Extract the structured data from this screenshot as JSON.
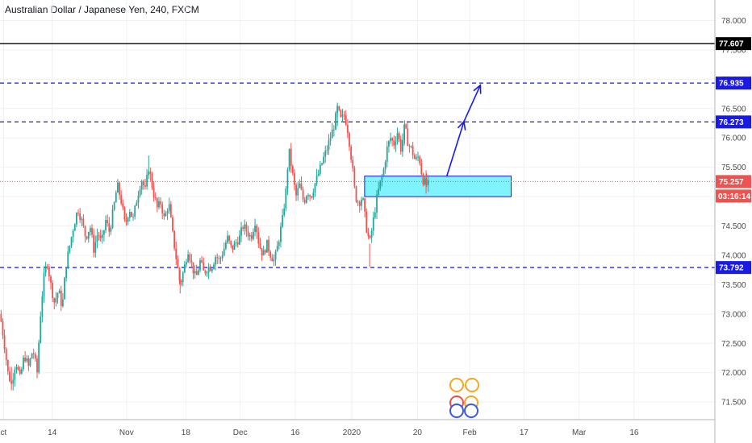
{
  "header": {
    "title": "Australian Dollar / Japanese Yen, 240, FXCM"
  },
  "colors": {
    "up": "#26a69a",
    "down": "#ef5350",
    "level_line": "#1a1ae6",
    "price_line": "#ef5350",
    "zone_fill": "#7ff4ff",
    "grid": "#eef0f3",
    "axis_text": "#4a4a4a"
  },
  "chart_data": {
    "type": "candlestick",
    "title": "Australian Dollar / Japanese Yen, 240, FXCM",
    "ylim": [
      71.2,
      78.35
    ],
    "xlim": [
      0,
      100
    ],
    "y_ticks": [
      "71.500",
      "72.000",
      "72.500",
      "73.000",
      "73.500",
      "74.000",
      "74.500",
      "75.000",
      "75.500",
      "76.000",
      "76.500",
      "77.000",
      "77.500",
      "78.000"
    ],
    "x_ticks": [
      {
        "label": "ct",
        "x": 0.5
      },
      {
        "label": "14",
        "x": 7.3
      },
      {
        "label": "Nov",
        "x": 17.7
      },
      {
        "label": "18",
        "x": 26.0
      },
      {
        "label": "Dec",
        "x": 33.6
      },
      {
        "label": "16",
        "x": 41.3
      },
      {
        "label": "2020",
        "x": 49.2
      },
      {
        "label": "20",
        "x": 58.4
      },
      {
        "label": "Feb",
        "x": 65.7
      },
      {
        "label": "17",
        "x": 73.3
      },
      {
        "label": "Mar",
        "x": 81.0
      },
      {
        "label": "16",
        "x": 88.7
      }
    ],
    "price_path": [
      [
        0,
        73.0
      ],
      [
        0.6,
        72.5
      ],
      [
        1.1,
        72.0
      ],
      [
        1.6,
        71.8
      ],
      [
        2.2,
        72.2
      ],
      [
        2.8,
        71.9
      ],
      [
        3.4,
        72.3
      ],
      [
        4.0,
        72.1
      ],
      [
        4.6,
        72.4
      ],
      [
        5.2,
        72.0
      ],
      [
        5.6,
        72.9
      ],
      [
        6.1,
        73.6
      ],
      [
        6.6,
        73.9
      ],
      [
        7.1,
        73.5
      ],
      [
        7.6,
        73.2
      ],
      [
        8.2,
        73.4
      ],
      [
        8.7,
        73.1
      ],
      [
        9.2,
        73.8
      ],
      [
        9.8,
        74.2
      ],
      [
        10.3,
        74.5
      ],
      [
        10.9,
        74.8
      ],
      [
        11.4,
        74.6
      ],
      [
        12.0,
        74.3
      ],
      [
        12.6,
        74.5
      ],
      [
        13.1,
        74.1
      ],
      [
        13.7,
        74.4
      ],
      [
        14.2,
        74.2
      ],
      [
        14.8,
        74.6
      ],
      [
        15.3,
        74.4
      ],
      [
        15.9,
        74.8
      ],
      [
        16.4,
        75.2
      ],
      [
        17.0,
        74.9
      ],
      [
        17.5,
        74.5
      ],
      [
        18.1,
        74.8
      ],
      [
        18.6,
        74.6
      ],
      [
        19.2,
        75.0
      ],
      [
        19.8,
        75.3
      ],
      [
        20.3,
        75.1
      ],
      [
        20.8,
        75.5
      ],
      [
        21.4,
        75.1
      ],
      [
        22.0,
        74.8
      ],
      [
        22.5,
        74.9
      ],
      [
        23.0,
        74.6
      ],
      [
        23.6,
        74.9
      ],
      [
        24.1,
        74.4
      ],
      [
        24.7,
        73.9
      ],
      [
        25.2,
        73.5
      ],
      [
        25.8,
        73.8
      ],
      [
        26.3,
        74.1
      ],
      [
        26.9,
        73.8
      ],
      [
        27.4,
        73.6
      ],
      [
        28.0,
        73.9
      ],
      [
        28.5,
        73.7
      ],
      [
        29.1,
        73.8
      ],
      [
        29.6,
        73.8
      ],
      [
        30.2,
        74.0
      ],
      [
        30.7,
        73.9
      ],
      [
        31.3,
        74.1
      ],
      [
        31.8,
        74.3
      ],
      [
        32.4,
        74.1
      ],
      [
        32.9,
        74.2
      ],
      [
        33.5,
        74.3
      ],
      [
        34.0,
        74.5
      ],
      [
        34.6,
        74.4
      ],
      [
        35.1,
        74.3
      ],
      [
        35.7,
        74.6
      ],
      [
        36.2,
        74.2
      ],
      [
        36.8,
        74.0
      ],
      [
        37.3,
        74.2
      ],
      [
        37.9,
        74.0
      ],
      [
        38.4,
        73.9
      ],
      [
        38.9,
        74.2
      ],
      [
        39.5,
        74.6
      ],
      [
        40.0,
        75.1
      ],
      [
        40.4,
        75.8
      ],
      [
        40.9,
        75.4
      ],
      [
        41.4,
        75.0
      ],
      [
        41.9,
        75.2
      ],
      [
        42.5,
        74.9
      ],
      [
        43.0,
        75.1
      ],
      [
        43.5,
        75.0
      ],
      [
        44.0,
        75.2
      ],
      [
        44.6,
        75.4
      ],
      [
        45.1,
        75.6
      ],
      [
        45.7,
        75.8
      ],
      [
        46.2,
        76.0
      ],
      [
        46.7,
        76.2
      ],
      [
        47.2,
        76.5
      ],
      [
        47.7,
        76.3
      ],
      [
        48.2,
        76.4
      ],
      [
        48.7,
        76.1
      ],
      [
        49.2,
        75.6
      ],
      [
        49.7,
        75.0
      ],
      [
        50.2,
        74.9
      ],
      [
        50.7,
        75.0
      ],
      [
        51.2,
        74.5
      ],
      [
        51.7,
        74.2
      ],
      [
        52.1,
        74.5
      ],
      [
        52.6,
        74.9
      ],
      [
        53.1,
        75.2
      ],
      [
        53.6,
        75.4
      ],
      [
        54.1,
        75.8
      ],
      [
        54.6,
        76.0
      ],
      [
        55.1,
        75.9
      ],
      [
        55.6,
        76.1
      ],
      [
        56.1,
        75.8
      ],
      [
        56.6,
        76.2
      ],
      [
        57.1,
        75.9
      ],
      [
        57.6,
        75.8
      ],
      [
        58.1,
        75.6
      ],
      [
        58.6,
        75.7
      ],
      [
        59.1,
        75.3
      ],
      [
        59.6,
        75.2
      ],
      [
        60.0,
        75.2
      ]
    ],
    "lows": [
      [
        1.6,
        71.7
      ],
      [
        25.2,
        73.35
      ],
      [
        51.7,
        73.8
      ],
      [
        59.6,
        75.05
      ]
    ],
    "highs": [
      [
        47.2,
        76.6
      ],
      [
        20.8,
        75.7
      ],
      [
        56.6,
        76.3
      ]
    ],
    "horizontal_levels": [
      {
        "value": 77.607,
        "label": "77.607",
        "style": "solid-black"
      },
      {
        "value": 76.935,
        "label": "76.935",
        "style": "dashed-blue"
      },
      {
        "value": 76.273,
        "label": "76.273",
        "style": "dashed-blue"
      },
      {
        "value": 73.792,
        "label": "73.792",
        "style": "dashed-blue"
      }
    ],
    "current_price": {
      "value": 75.257,
      "label": "75.257",
      "countdown": "03:16:14"
    },
    "zone": {
      "x0": 51.0,
      "x1": 71.5,
      "y0": 75.0,
      "y1": 75.35
    },
    "projection": [
      [
        62.5,
        75.35
      ],
      [
        64.9,
        76.28
      ],
      [
        67.2,
        76.9
      ]
    ],
    "grid": true,
    "legend": "none"
  }
}
